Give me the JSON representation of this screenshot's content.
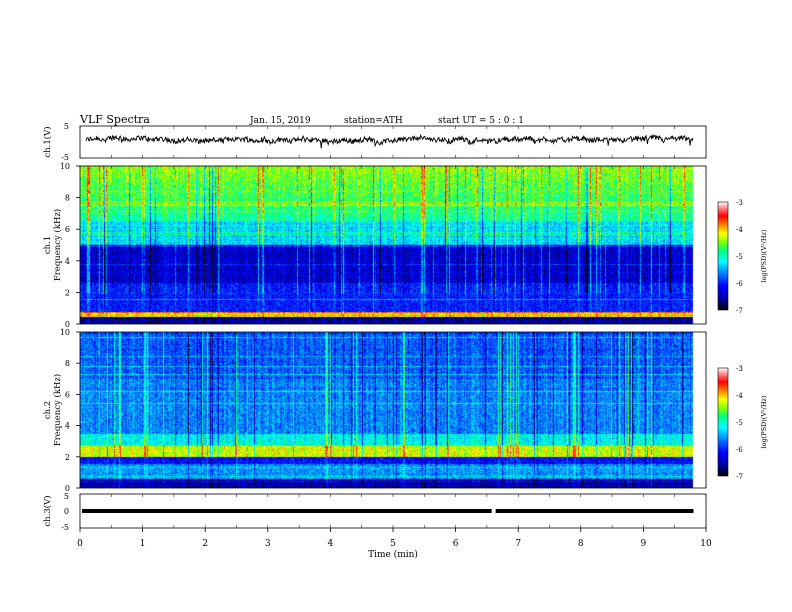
{
  "header": {
    "title": "VLF Spectra",
    "date": "Jan. 15, 2019",
    "station": "station=ATH",
    "start_ut": "start UT =  5 : 0 : 1"
  },
  "chart_data": [
    {
      "type": "line",
      "panel": "ch1-waveform",
      "ylabel": "ch.1(V)",
      "ylim": [
        -5,
        5
      ],
      "yticks": [
        5,
        -5
      ],
      "xlim": [
        0,
        10
      ],
      "baseline_level": 0.6,
      "data_end_min": 9.8
    },
    {
      "type": "heatmap",
      "panel": "ch1-spectrogram",
      "ylabel": "ch.1\nFrequency (kHz)",
      "ylim": [
        0,
        10
      ],
      "yticks": [
        0,
        2,
        4,
        6,
        8,
        10
      ],
      "xlim": [
        0,
        10
      ],
      "data_end_min": 9.8,
      "colorbar": {
        "label": "log(PSD)(V²/Hz)",
        "range": [
          -7,
          -3
        ],
        "ticks": [
          -3,
          -4,
          -5,
          -6,
          -7
        ]
      }
    },
    {
      "type": "heatmap",
      "panel": "ch2-spectrogram",
      "ylabel": "ch.2\nFrequency (kHz)",
      "ylim": [
        0,
        10
      ],
      "yticks": [
        0,
        2,
        4,
        6,
        8,
        10
      ],
      "xlim": [
        0,
        10
      ],
      "data_end_min": 9.8,
      "colorbar": {
        "label": "log(PSD)(V²/Hz)",
        "range": [
          -7,
          -3
        ],
        "ticks": [
          -3,
          -4,
          -5,
          -6,
          -7
        ]
      }
    },
    {
      "type": "line",
      "panel": "ch3-waveform",
      "ylabel": "ch.3(V)",
      "ylim": [
        -5,
        5
      ],
      "yticks": [
        5,
        0,
        -5
      ],
      "xlim": [
        0,
        10
      ],
      "level": 0,
      "gap_min": 6.6,
      "data_end_min": 9.8
    }
  ],
  "xaxis": {
    "label": "Time (min)",
    "ticks": [
      0,
      1,
      2,
      3,
      4,
      5,
      6,
      7,
      8,
      9,
      10
    ]
  },
  "colorbar_ticks_text": [
    "-3",
    "-4",
    "-5",
    "-6",
    "-7"
  ],
  "colors": {
    "colormap": [
      "#000000",
      "#0000a0",
      "#0000ff",
      "#0080ff",
      "#00ffff",
      "#00ff80",
      "#80ff00",
      "#ffff00",
      "#ff8000",
      "#ff0000",
      "#ff8080",
      "#ffffff"
    ]
  }
}
